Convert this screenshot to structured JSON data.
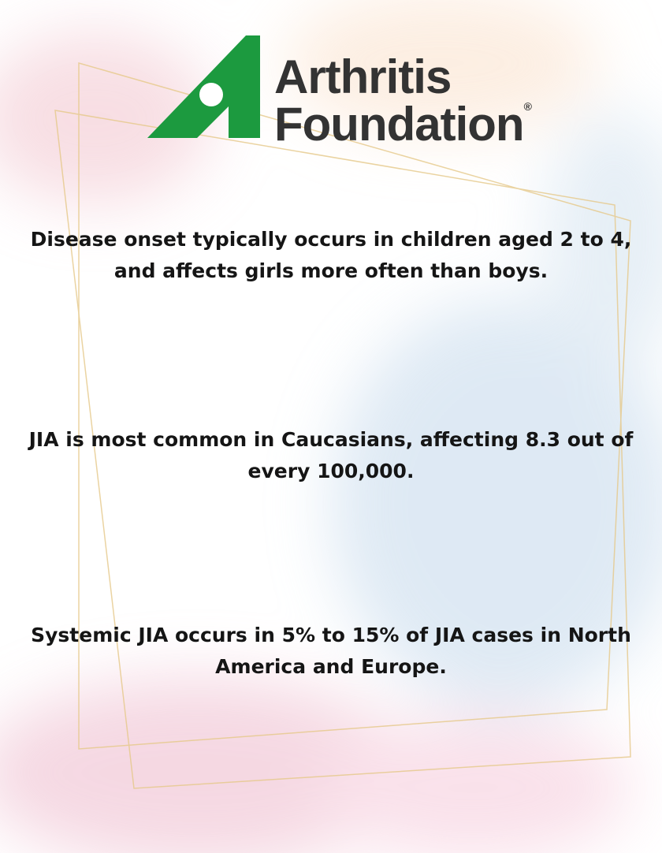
{
  "header": {
    "logo_line1": "Arthritis",
    "logo_line2": "Foundation",
    "logo_mark": "®"
  },
  "facts": [
    {
      "lines": [
        "Disease onset typically occurs in children aged 2 to 4,",
        "and affects girls more often than boys."
      ]
    },
    {
      "lines": [
        "JIA is most common in Caucasians, affecting 8.3 out of",
        "every 100,000."
      ]
    },
    {
      "lines": [
        "Systemic JIA occurs in 5% to 15% of JIA cases in North",
        "America and Europe."
      ]
    }
  ]
}
